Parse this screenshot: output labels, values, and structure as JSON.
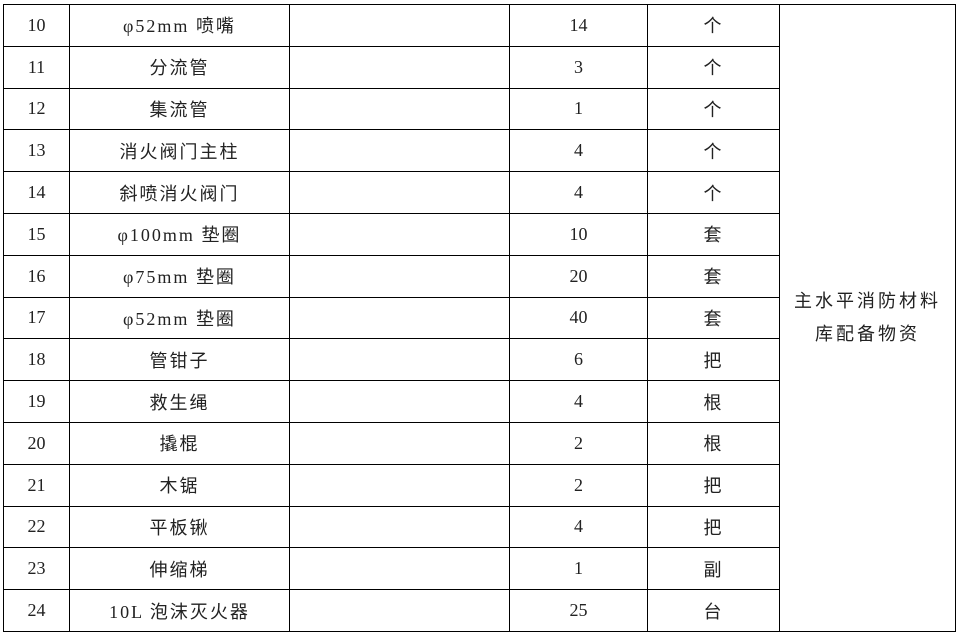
{
  "rows": [
    {
      "no": "10",
      "name": "φ52mm 喷嘴",
      "spec": "",
      "qty": "14",
      "unit": "个"
    },
    {
      "no": "11",
      "name": "分流管",
      "spec": "",
      "qty": "3",
      "unit": "个"
    },
    {
      "no": "12",
      "name": "集流管",
      "spec": "",
      "qty": "1",
      "unit": "个"
    },
    {
      "no": "13",
      "name": "消火阀门主柱",
      "spec": "",
      "qty": "4",
      "unit": "个"
    },
    {
      "no": "14",
      "name": "斜喷消火阀门",
      "spec": "",
      "qty": "4",
      "unit": "个"
    },
    {
      "no": "15",
      "name": "φ100mm 垫圈",
      "spec": "",
      "qty": "10",
      "unit": "套"
    },
    {
      "no": "16",
      "name": "φ75mm 垫圈",
      "spec": "",
      "qty": "20",
      "unit": "套"
    },
    {
      "no": "17",
      "name": "φ52mm 垫圈",
      "spec": "",
      "qty": "40",
      "unit": "套"
    },
    {
      "no": "18",
      "name": "管钳子",
      "spec": "",
      "qty": "6",
      "unit": "把"
    },
    {
      "no": "19",
      "name": "救生绳",
      "spec": "",
      "qty": "4",
      "unit": "根"
    },
    {
      "no": "20",
      "name": "撬棍",
      "spec": "",
      "qty": "2",
      "unit": "根"
    },
    {
      "no": "21",
      "name": "木锯",
      "spec": "",
      "qty": "2",
      "unit": "把"
    },
    {
      "no": "22",
      "name": "平板锹",
      "spec": "",
      "qty": "4",
      "unit": "把"
    },
    {
      "no": "23",
      "name": "伸缩梯",
      "spec": "",
      "qty": "1",
      "unit": "副"
    },
    {
      "no": "24",
      "name": "10L 泡沫灭火器",
      "spec": "",
      "qty": "25",
      "unit": "台"
    }
  ],
  "remark": {
    "line1": "主水平消防材料",
    "line2": "库配备物资"
  }
}
